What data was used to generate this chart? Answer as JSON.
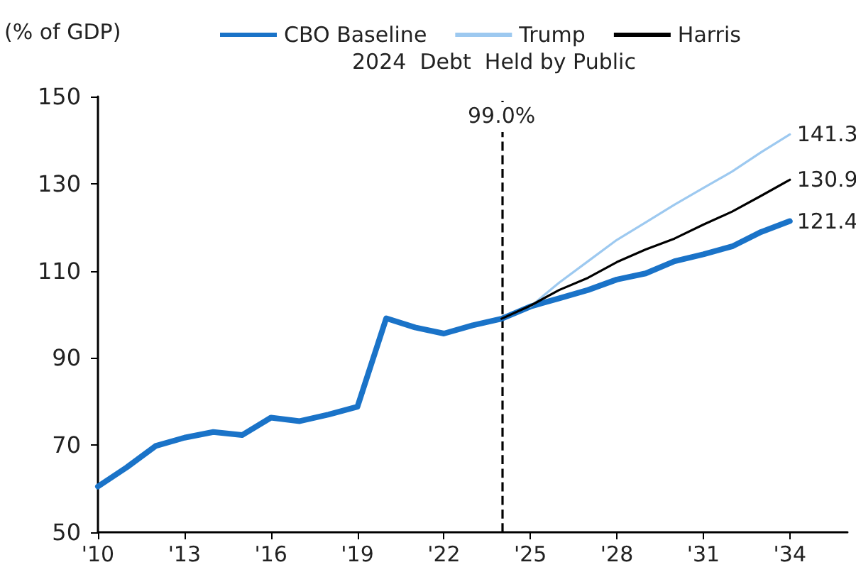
{
  "chart_data": {
    "type": "line",
    "ylabel": "(% of GDP)",
    "annotations": [
      "2024  Debt  Held by Public",
      "99.0%"
    ],
    "xlim": [
      2010,
      2036
    ],
    "xticks": [
      {
        "value": 2010,
        "label": "'10"
      },
      {
        "value": 2013,
        "label": "'13"
      },
      {
        "value": 2016,
        "label": "'16"
      },
      {
        "value": 2019,
        "label": "'19"
      },
      {
        "value": 2022,
        "label": "'22"
      },
      {
        "value": 2025,
        "label": "'25"
      },
      {
        "value": 2028,
        "label": "'28"
      },
      {
        "value": 2031,
        "label": "'31"
      },
      {
        "value": 2034,
        "label": "'34"
      }
    ],
    "ylim": [
      50,
      150
    ],
    "yticks": [
      50,
      70,
      90,
      110,
      130,
      150
    ],
    "grid": false,
    "legend": "top",
    "marker": "none",
    "line_style": "solid",
    "ref_lines": [
      {
        "axis": "x",
        "value": 2024,
        "color": "#000000",
        "line_style": "dashed"
      }
    ],
    "series": [
      {
        "name": "CBO Baseline",
        "color": "#1a73c8",
        "x": [
          2010,
          2011,
          2012,
          2013,
          2014,
          2015,
          2016,
          2017,
          2018,
          2019,
          2020,
          2021,
          2022,
          2023,
          2024,
          2025,
          2026,
          2027,
          2028,
          2029,
          2030,
          2031,
          2032,
          2033,
          2034
        ],
        "values": [
          60.5,
          64.9,
          69.8,
          71.7,
          73.0,
          72.3,
          76.3,
          75.5,
          77.0,
          78.8,
          99.1,
          97.0,
          95.6,
          97.5,
          99.0,
          101.8,
          103.7,
          105.6,
          108.0,
          109.4,
          112.2,
          113.8,
          115.6,
          118.9,
          121.4
        ],
        "value_labels": [
          null,
          null,
          null,
          null,
          null,
          null,
          null,
          null,
          null,
          null,
          null,
          null,
          null,
          null,
          null,
          null,
          null,
          null,
          null,
          null,
          null,
          null,
          null,
          null,
          "121.4"
        ]
      },
      {
        "name": "Trump",
        "color": "#9dc9f0",
        "x": [
          2025,
          2026,
          2027,
          2028,
          2029,
          2030,
          2031,
          2032,
          2033,
          2034
        ],
        "values": [
          101.8,
          107.3,
          112.2,
          117.1,
          121.1,
          125.2,
          129.0,
          132.8,
          137.2,
          141.3
        ],
        "value_labels": [
          null,
          null,
          null,
          null,
          null,
          null,
          null,
          null,
          null,
          "141.3"
        ]
      },
      {
        "name": "Harris",
        "color": "#000000",
        "x": [
          2024,
          2025,
          2026,
          2027,
          2028,
          2029,
          2030,
          2031,
          2032,
          2033,
          2034
        ],
        "values": [
          99.0,
          102.0,
          105.6,
          108.4,
          112.0,
          114.9,
          117.4,
          120.6,
          123.6,
          127.2,
          130.9
        ],
        "value_labels": [
          null,
          null,
          null,
          null,
          null,
          null,
          null,
          null,
          null,
          null,
          "130.9"
        ]
      }
    ]
  }
}
